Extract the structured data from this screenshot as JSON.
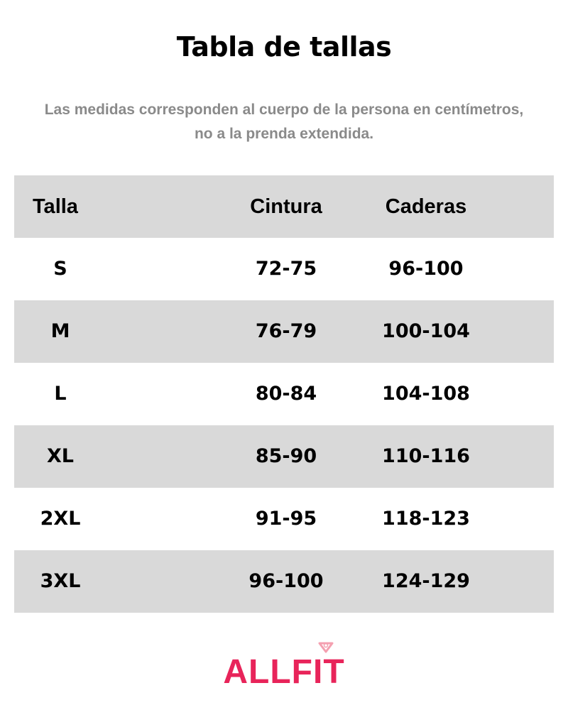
{
  "title": "Tabla de tallas",
  "subtitle": "Las medidas corresponden al cuerpo de la persona en centímetros, no a la prenda extendida.",
  "table": {
    "headers": [
      "Talla",
      "Cintura",
      "Caderas"
    ],
    "rows": [
      [
        "S",
        "72-75",
        "96-100"
      ],
      [
        "M",
        "76-79",
        "100-104"
      ],
      [
        "L",
        "80-84",
        "104-108"
      ],
      [
        "XL",
        "85-90",
        "110-116"
      ],
      [
        "2XL",
        "91-95",
        "118-123"
      ],
      [
        "3XL",
        "96-100",
        "124-129"
      ]
    ]
  },
  "logo": {
    "text": "ALLFIT",
    "color": "#e8245a",
    "accent": "#f4a0b0"
  },
  "colors": {
    "row_gray": "#d9d9d9",
    "subtitle": "#8a8a8a"
  }
}
